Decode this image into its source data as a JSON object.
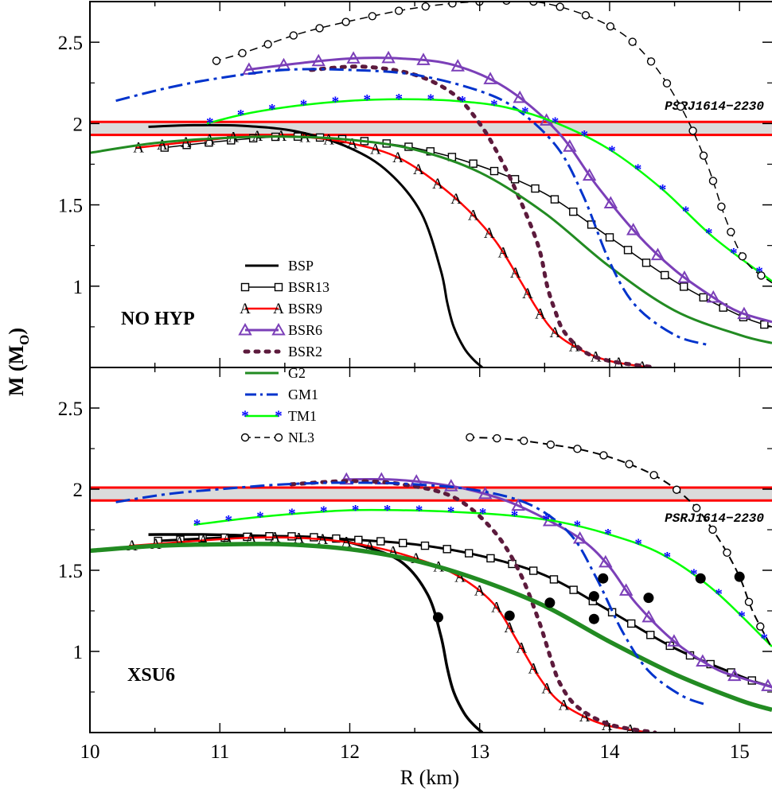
{
  "chart_data": {
    "type": "line",
    "xlabel": "R (km)",
    "ylabel": "M (M",
    "ylabel_sub": "O",
    "ylabel_close": ")",
    "xlim": [
      10,
      15.25
    ],
    "x_ticks": [
      "10",
      "11",
      "12",
      "13",
      "14",
      "15"
    ],
    "observation": {
      "label": "PSRJ1614−2230",
      "mass_low": 1.93,
      "mass_high": 2.01,
      "band_color": "#cccccc",
      "line_color": "#ff0000"
    },
    "legend": {
      "placement": "center-left",
      "entries": [
        {
          "name": "BSP",
          "color": "#000000",
          "dash": "solid",
          "marker": "none"
        },
        {
          "name": "BSR13",
          "color": "#000000",
          "dash": "solid",
          "marker": "square"
        },
        {
          "name": "BSR9",
          "color": "#ff0000",
          "dash": "solid",
          "marker": "A"
        },
        {
          "name": "BSR6",
          "color": "#7b3fb8",
          "dash": "solid",
          "marker": "triangle"
        },
        {
          "name": "BSR2",
          "color": "#5c1a3c",
          "dash": "dotted",
          "marker": "none"
        },
        {
          "name": "G2",
          "color": "#228b22",
          "dash": "solid",
          "marker": "none"
        },
        {
          "name": "GM1",
          "color": "#0033cc",
          "dash": "dashdot",
          "marker": "none"
        },
        {
          "name": "TM1",
          "color": "#00ff00",
          "dash": "solid",
          "marker": "star"
        },
        {
          "name": "NL3",
          "color": "#000000",
          "dash": "dashed",
          "marker": "circle"
        }
      ]
    },
    "panels": [
      {
        "label": "NO HYP",
        "ylim": [
          0.5,
          2.75
        ],
        "y_ticks": [
          "1",
          "1.5",
          "2",
          "2.5"
        ],
        "y_tick_values": [
          1,
          1.5,
          2,
          2.5
        ],
        "series": [
          {
            "name": "BSP",
            "x": [
              10.45,
              10.8,
              11.2,
              11.6,
              12.0,
              12.3,
              12.55,
              12.7,
              12.75,
              12.8,
              12.88,
              12.95,
              13.02
            ],
            "y": [
              1.98,
              1.99,
              1.985,
              1.95,
              1.85,
              1.7,
              1.45,
              1.1,
              0.9,
              0.75,
              0.62,
              0.55,
              0.5
            ]
          },
          {
            "name": "BSR13",
            "x": [
              10.55,
              11.0,
              11.5,
              12.0,
              12.5,
              13.0,
              13.5,
              14.0,
              14.5,
              15.0,
              15.25
            ],
            "y": [
              1.85,
              1.89,
              1.92,
              1.9,
              1.85,
              1.74,
              1.57,
              1.3,
              1.03,
              0.82,
              0.75
            ]
          },
          {
            "name": "BSR9",
            "x": [
              10.35,
              10.8,
              11.2,
              11.6,
              12.0,
              12.4,
              12.8,
              13.1,
              13.3,
              13.45,
              13.6,
              13.8,
              14.0,
              14.3
            ],
            "y": [
              1.85,
              1.89,
              1.92,
              1.92,
              1.88,
              1.78,
              1.55,
              1.3,
              1.05,
              0.85,
              0.7,
              0.6,
              0.54,
              0.5
            ]
          },
          {
            "name": "BSR6",
            "x": [
              11.2,
              11.6,
              12.0,
              12.4,
              12.8,
              13.2,
              13.6,
              13.9,
              14.2,
              14.5,
              14.8,
              15.0,
              15.25
            ],
            "y": [
              2.33,
              2.37,
              2.4,
              2.4,
              2.36,
              2.22,
              1.95,
              1.62,
              1.33,
              1.1,
              0.93,
              0.84,
              0.78
            ]
          },
          {
            "name": "BSR2",
            "x": [
              11.7,
              12.1,
              12.5,
              12.8,
              13.0,
              13.15,
              13.3,
              13.45,
              13.52,
              13.58,
              13.65,
              13.8,
              14.0,
              14.35
            ],
            "y": [
              2.33,
              2.35,
              2.3,
              2.18,
              2.0,
              1.8,
              1.55,
              1.25,
              1.0,
              0.85,
              0.72,
              0.6,
              0.54,
              0.5
            ]
          },
          {
            "name": "G2",
            "x": [
              10.0,
              10.5,
              11.0,
              11.5,
              12.0,
              12.5,
              13.0,
              13.5,
              14.0,
              14.5,
              15.0,
              15.25
            ],
            "y": [
              1.82,
              1.88,
              1.91,
              1.92,
              1.9,
              1.84,
              1.7,
              1.45,
              1.12,
              0.85,
              0.7,
              0.65
            ]
          },
          {
            "name": "GM1",
            "x": [
              10.2,
              10.6,
              11.0,
              11.5,
              12.0,
              12.5,
              13.0,
              13.3,
              13.6,
              13.8,
              14.0,
              14.2,
              14.5,
              14.75
            ],
            "y": [
              2.14,
              2.22,
              2.28,
              2.33,
              2.33,
              2.3,
              2.2,
              2.08,
              1.85,
              1.55,
              1.15,
              0.88,
              0.7,
              0.64
            ]
          },
          {
            "name": "TM1",
            "x": [
              10.9,
              11.2,
              11.6,
              12.0,
              12.4,
              12.8,
              13.2,
              13.6,
              14.0,
              14.4,
              14.8,
              15.25
            ],
            "y": [
              2.0,
              2.06,
              2.11,
              2.14,
              2.15,
              2.14,
              2.1,
              2.0,
              1.84,
              1.6,
              1.3,
              1.03
            ]
          },
          {
            "name": "NL3",
            "x": [
              10.95,
              11.2,
              11.6,
              12.0,
              12.5,
              13.0,
              13.5,
              14.0,
              14.3,
              14.55,
              14.75,
              14.9,
              15.05,
              15.25
            ],
            "y": [
              2.38,
              2.44,
              2.55,
              2.63,
              2.71,
              2.75,
              2.74,
              2.6,
              2.4,
              2.1,
              1.75,
              1.4,
              1.15,
              1.02
            ]
          }
        ]
      },
      {
        "label": "XSU6",
        "ylim": [
          0.5,
          2.75
        ],
        "y_ticks": [
          "1",
          "1.5",
          "2",
          "2.5"
        ],
        "y_tick_values": [
          1,
          1.5,
          2,
          2.5
        ],
        "series": [
          {
            "name": "BSP",
            "x": [
              10.45,
              10.9,
              11.4,
              11.8,
              12.1,
              12.4,
              12.6,
              12.7,
              12.75,
              12.8,
              12.88,
              12.95,
              13.02
            ],
            "y": [
              1.72,
              1.72,
              1.71,
              1.7,
              1.65,
              1.55,
              1.35,
              1.1,
              0.9,
              0.75,
              0.62,
              0.55,
              0.5
            ]
          },
          {
            "name": "BSR13",
            "x": [
              10.5,
              11.0,
              11.5,
              12.0,
              12.5,
              13.0,
              13.5,
              14.0,
              14.5,
              15.0,
              15.25
            ],
            "y": [
              1.68,
              1.7,
              1.71,
              1.69,
              1.66,
              1.59,
              1.47,
              1.25,
              1.02,
              0.85,
              0.78
            ]
          },
          {
            "name": "BSR9",
            "x": [
              10.3,
              10.8,
              11.2,
              11.6,
              12.0,
              12.4,
              12.8,
              13.1,
              13.3,
              13.45,
              13.6,
              13.8,
              14.0,
              14.3
            ],
            "y": [
              1.65,
              1.68,
              1.7,
              1.7,
              1.67,
              1.6,
              1.48,
              1.3,
              1.05,
              0.85,
              0.7,
              0.6,
              0.54,
              0.5
            ]
          },
          {
            "name": "BSR6",
            "x": [
              11.95,
              12.3,
              12.6,
              12.9,
              13.2,
              13.5,
              13.8,
              14.0,
              14.2,
              14.5,
              14.8,
              15.0,
              15.25
            ],
            "y": [
              2.06,
              2.06,
              2.04,
              2.0,
              1.93,
              1.82,
              1.68,
              1.52,
              1.3,
              1.06,
              0.9,
              0.84,
              0.78
            ]
          },
          {
            "name": "BSR2",
            "x": [
              11.55,
              12.0,
              12.4,
              12.8,
              13.1,
              13.3,
              13.45,
              13.55,
              13.62,
              13.75,
              14.0,
              14.35
            ],
            "y": [
              2.03,
              2.05,
              2.03,
              1.95,
              1.75,
              1.5,
              1.2,
              0.95,
              0.8,
              0.66,
              0.55,
              0.5
            ]
          },
          {
            "name": "G2",
            "x": [
              10.0,
              10.5,
              11.0,
              11.5,
              12.0,
              12.5,
              13.0,
              13.5,
              14.0,
              14.5,
              15.0,
              15.25
            ],
            "y": [
              1.62,
              1.65,
              1.66,
              1.66,
              1.63,
              1.56,
              1.44,
              1.28,
              1.06,
              0.86,
              0.7,
              0.64
            ]
          },
          {
            "name": "GM1",
            "x": [
              10.2,
              10.6,
              11.0,
              11.5,
              12.0,
              12.5,
              13.0,
              13.4,
              13.7,
              13.9,
              14.1,
              14.3,
              14.55,
              14.75
            ],
            "y": [
              1.92,
              1.97,
              2.0,
              2.03,
              2.04,
              2.03,
              1.99,
              1.9,
              1.72,
              1.45,
              1.12,
              0.88,
              0.73,
              0.67
            ]
          },
          {
            "name": "TM1",
            "x": [
              10.8,
              11.2,
              11.6,
              12.0,
              12.4,
              12.8,
              13.2,
              13.6,
              14.0,
              14.4,
              14.8,
              15.25
            ],
            "y": [
              1.78,
              1.82,
              1.85,
              1.87,
              1.87,
              1.86,
              1.84,
              1.8,
              1.72,
              1.6,
              1.38,
              1.03
            ]
          },
          {
            "name": "NL3",
            "x": [
              12.9,
              13.2,
              13.5,
              13.8,
              14.1,
              14.4,
              14.65,
              14.85,
              15.0,
              15.1,
              15.25
            ],
            "y": [
              2.32,
              2.31,
              2.28,
              2.24,
              2.17,
              2.06,
              1.9,
              1.68,
              1.46,
              1.25,
              1.02
            ]
          }
        ],
        "filled_dots": [
          {
            "x": 12.68,
            "y": 1.21
          },
          {
            "x": 13.23,
            "y": 1.22
          },
          {
            "x": 13.54,
            "y": 1.3
          },
          {
            "x": 13.88,
            "y": 1.2
          },
          {
            "x": 13.88,
            "y": 1.34
          },
          {
            "x": 13.95,
            "y": 1.45
          },
          {
            "x": 14.3,
            "y": 1.33
          },
          {
            "x": 14.7,
            "y": 1.45
          },
          {
            "x": 15.0,
            "y": 1.46
          }
        ]
      }
    ]
  }
}
